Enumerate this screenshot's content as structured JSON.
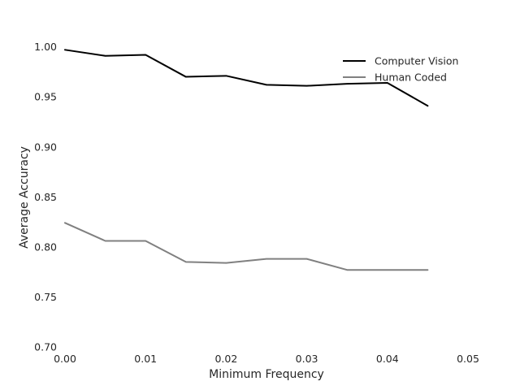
{
  "chart_data": {
    "type": "line",
    "title": "",
    "xlabel": "Minimum Frequency",
    "ylabel": "Average Accuracy",
    "xlim": [
      0.0,
      0.05
    ],
    "ylim": [
      0.7,
      1.02
    ],
    "xticks": [
      "0.00",
      "0.01",
      "0.02",
      "0.03",
      "0.04",
      "0.05"
    ],
    "yticks": [
      "0.70",
      "0.75",
      "0.80",
      "0.85",
      "0.90",
      "0.95",
      "1.00"
    ],
    "grid": false,
    "legend_position": "top-right",
    "x": [
      0.0,
      0.005,
      0.01,
      0.015,
      0.02,
      0.025,
      0.03,
      0.035,
      0.04,
      0.045
    ],
    "series": [
      {
        "name": "Computer Vision",
        "color": "#000000",
        "values": [
          0.997,
          0.991,
          0.992,
          0.97,
          0.971,
          0.962,
          0.961,
          0.963,
          0.964,
          0.941
        ]
      },
      {
        "name": "Human Coded",
        "color": "#808080",
        "values": [
          0.824,
          0.806,
          0.806,
          0.785,
          0.784,
          0.788,
          0.788,
          0.777,
          0.777,
          0.777
        ]
      }
    ]
  }
}
